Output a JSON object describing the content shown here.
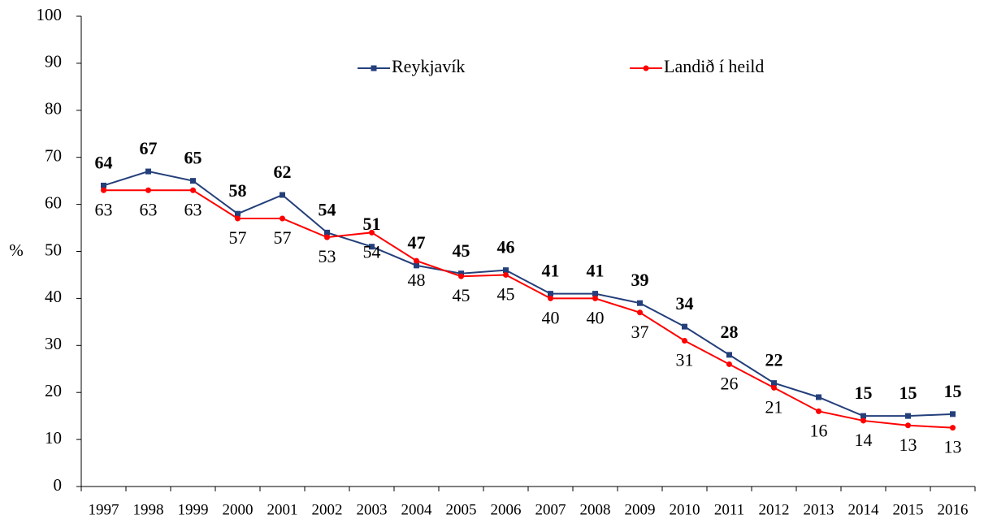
{
  "chart_data": {
    "type": "line",
    "ylabel": "%",
    "categories": [
      "1997",
      "1998",
      "1999",
      "2000",
      "2001",
      "2002",
      "2003",
      "2004",
      "2005",
      "2006",
      "2007",
      "2008",
      "2009",
      "2010",
      "2011",
      "2012",
      "2013",
      "2014",
      "2015",
      "2016"
    ],
    "series": [
      {
        "name": "Reykjavík",
        "color": "#243f7a",
        "label_color": "#5b8fd2",
        "marker": "square",
        "values": [
          64,
          67,
          65,
          58,
          62,
          54,
          51,
          47,
          45.3,
          46,
          41,
          41,
          39,
          34,
          28,
          22,
          19,
          15,
          15,
          15.4
        ],
        "value_labels": [
          "64",
          "67",
          "65",
          "58",
          "62",
          "54",
          "51",
          "47",
          "45",
          "46",
          "41",
          "41",
          "39",
          "34",
          "28",
          "22",
          null,
          "15",
          "15",
          "15"
        ]
      },
      {
        "name": "Landið í heild",
        "color": "#ff0000",
        "label_color": "#ff0000",
        "marker": "circle",
        "values": [
          63,
          63,
          63,
          57,
          57,
          53,
          54,
          48,
          44.7,
          45,
          40,
          40,
          37,
          31,
          26,
          21,
          16,
          14,
          13,
          12.5
        ],
        "value_labels": [
          "63",
          "63",
          "63",
          "57",
          "57",
          "53",
          "54",
          "48",
          "45",
          "45",
          "40",
          "40",
          "37",
          "31",
          "26",
          "21",
          "16",
          "14",
          "13",
          "13"
        ]
      }
    ],
    "ylim": [
      0,
      100
    ],
    "yticks": [
      0,
      10,
      20,
      30,
      40,
      50,
      60,
      70,
      80,
      90,
      100
    ]
  }
}
